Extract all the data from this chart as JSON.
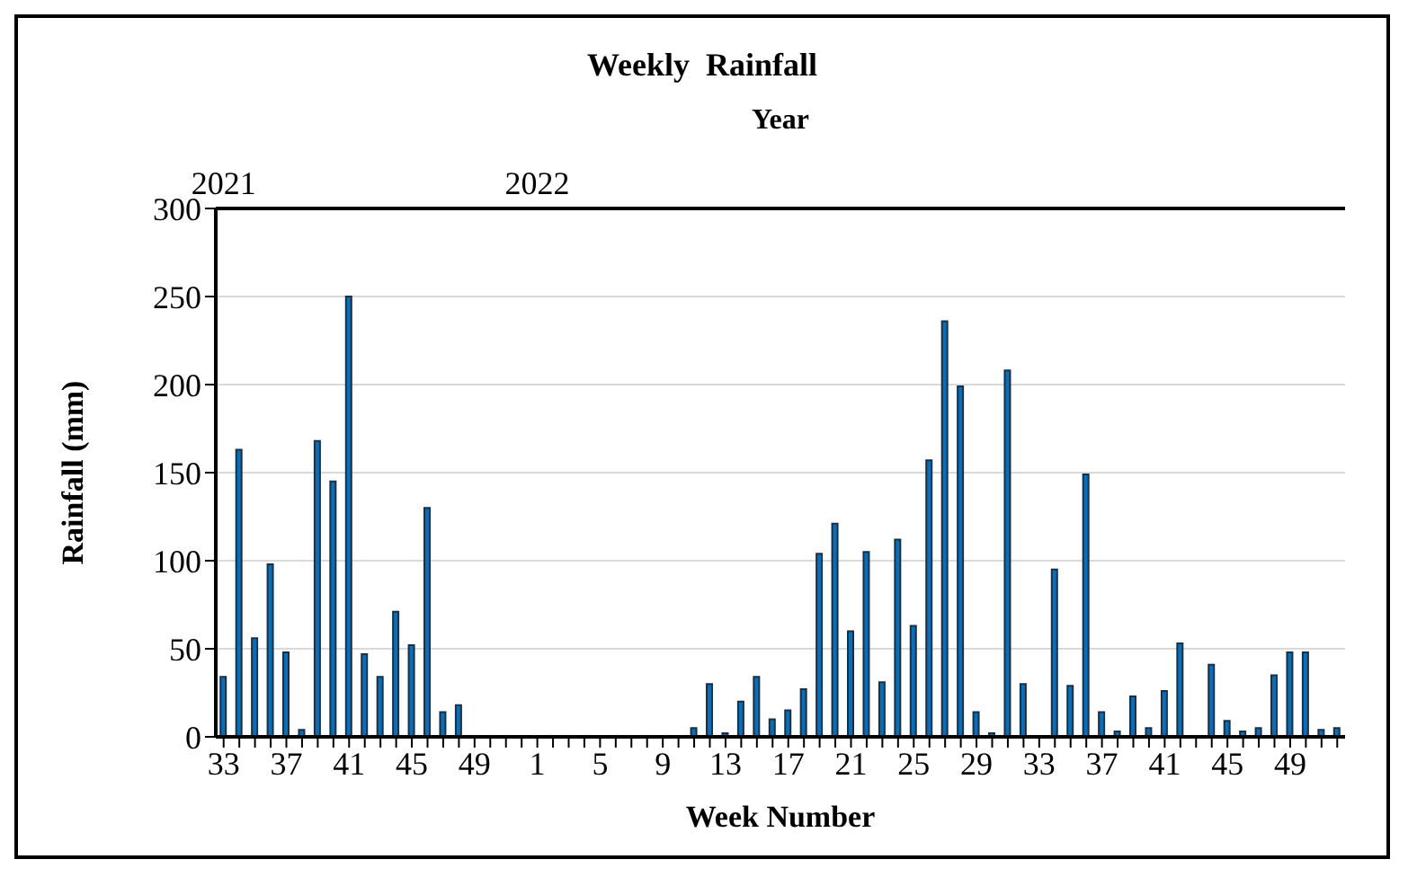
{
  "chart_data": {
    "type": "bar",
    "title": "Weekly  Rainfall",
    "xlabel": "Week Number",
    "ylabel": "Rainfall (mm)",
    "x2label": "Year",
    "annotations": [
      "2021",
      "2022"
    ],
    "categories": [
      "33",
      null,
      null,
      null,
      "37",
      null,
      null,
      null,
      "41",
      null,
      null,
      null,
      "45",
      null,
      null,
      null,
      "49",
      null,
      null,
      null,
      "1",
      null,
      null,
      null,
      "5",
      null,
      null,
      null,
      "9",
      null,
      null,
      null,
      "13",
      null,
      null,
      null,
      "17",
      null,
      null,
      null,
      "21",
      null,
      null,
      null,
      "25",
      null,
      null,
      null,
      "29",
      null,
      null,
      null,
      "33",
      null,
      null,
      null,
      "37",
      null,
      null,
      null,
      "41",
      null,
      null,
      null,
      "45",
      null,
      null,
      null,
      "49",
      null,
      null,
      null
    ],
    "values": [
      34,
      163,
      56,
      98,
      48,
      4,
      168,
      145,
      250,
      47,
      34,
      71,
      52,
      130,
      14,
      18,
      0,
      0,
      0,
      0,
      0,
      0,
      0,
      0,
      0,
      0,
      0,
      0,
      0,
      0,
      5,
      30,
      2,
      20,
      34,
      10,
      15,
      27,
      104,
      121,
      60,
      105,
      31,
      112,
      63,
      157,
      236,
      199,
      14,
      2,
      208,
      30,
      0,
      95,
      29,
      149,
      14,
      3,
      23,
      5,
      26,
      53,
      0,
      41,
      9,
      3,
      5,
      35,
      48,
      48,
      4,
      5
    ],
    "color": "#0070c0",
    "ylim": [
      0,
      300
    ],
    "yticks": [
      0,
      50,
      100,
      150,
      200,
      250,
      300
    ],
    "grid": "y"
  }
}
